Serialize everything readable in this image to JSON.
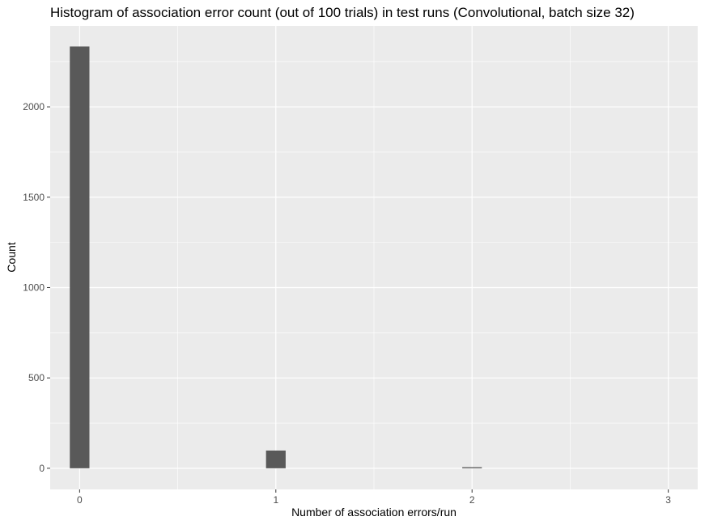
{
  "chart_data": {
    "type": "bar",
    "title": "Histogram of association error count (out of 100 trials) in test runs (Convolutional, batch size 32)",
    "xlabel": "Number of association errors/run",
    "ylabel": "Count",
    "x_ticks": [
      0,
      1,
      2,
      3
    ],
    "y_ticks": [
      0,
      500,
      1000,
      1500,
      2000
    ],
    "xlim": [
      -0.15,
      3.15
    ],
    "ylim": [
      -117,
      2448
    ],
    "bin_width": 0.1,
    "bars": [
      {
        "x": 0,
        "value": 2334
      },
      {
        "x": 1,
        "value": 98
      },
      {
        "x": 2,
        "value": 6
      }
    ],
    "grid": true,
    "panel_background": "#ebebeb",
    "bar_color": "#595959"
  }
}
